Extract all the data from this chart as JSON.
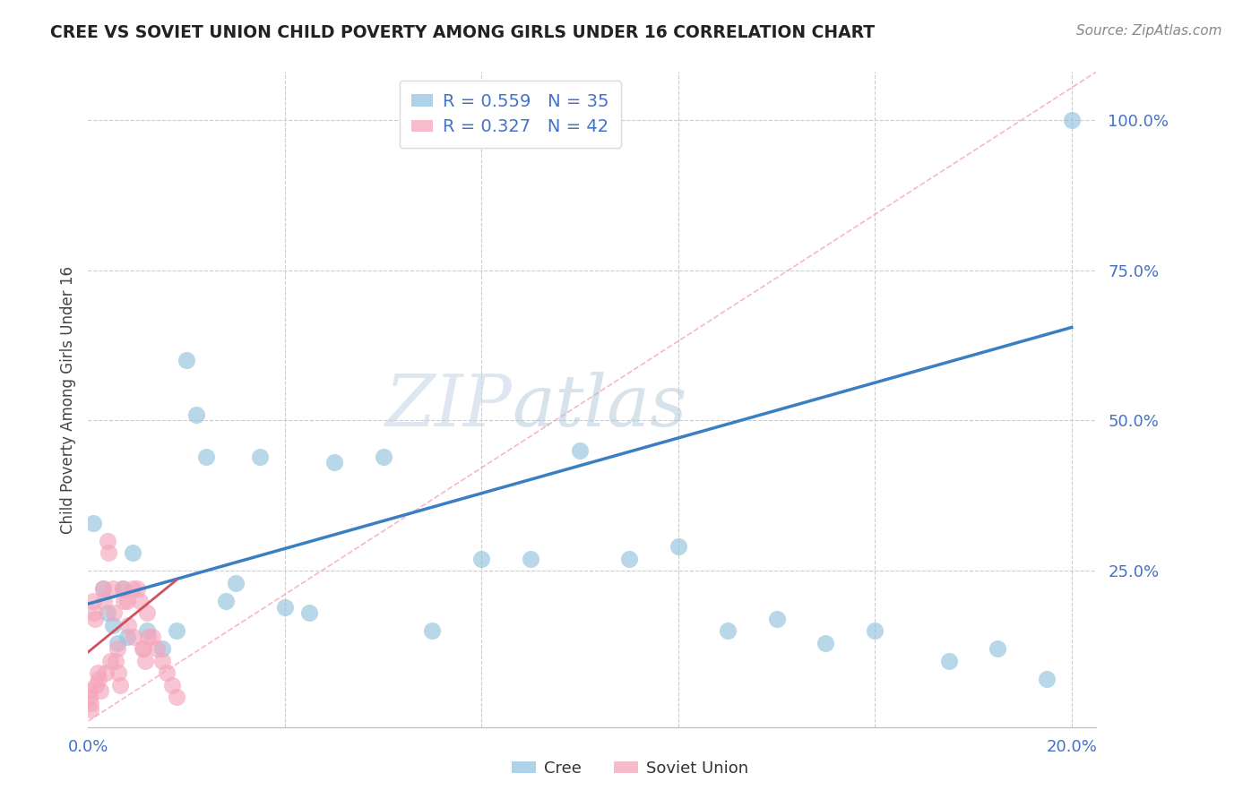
{
  "title": "CREE VS SOVIET UNION CHILD POVERTY AMONG GIRLS UNDER 16 CORRELATION CHART",
  "source": "Source: ZipAtlas.com",
  "ylabel": "Child Poverty Among Girls Under 16",
  "watermark_zip": "ZIP",
  "watermark_atlas": "atlas",
  "cree_color": "#93C4E0",
  "soviet_color": "#F4A6BC",
  "cree_line_color": "#3A7FC1",
  "soviet_line_color": "#D05060",
  "diag_line_color": "#F4A6BC",
  "legend_text_color": "#333333",
  "legend_r_color": "#4472C4",
  "legend_n_color": "#4472C4",
  "axis_label_color": "#4472C4",
  "cree_R": 0.559,
  "cree_N": 35,
  "soviet_R": 0.327,
  "soviet_N": 42,
  "xlim": [
    0.0,
    0.205
  ],
  "ylim": [
    -0.01,
    1.08
  ],
  "cree_x": [
    0.001,
    0.003,
    0.004,
    0.005,
    0.006,
    0.007,
    0.008,
    0.009,
    0.012,
    0.015,
    0.018,
    0.02,
    0.022,
    0.024,
    0.028,
    0.03,
    0.035,
    0.04,
    0.045,
    0.05,
    0.06,
    0.07,
    0.08,
    0.09,
    0.1,
    0.11,
    0.12,
    0.13,
    0.14,
    0.15,
    0.16,
    0.175,
    0.185,
    0.195,
    0.2
  ],
  "cree_y": [
    0.33,
    0.22,
    0.18,
    0.16,
    0.13,
    0.22,
    0.14,
    0.28,
    0.15,
    0.12,
    0.15,
    0.6,
    0.51,
    0.44,
    0.2,
    0.23,
    0.44,
    0.19,
    0.18,
    0.43,
    0.44,
    0.15,
    0.27,
    0.27,
    0.45,
    0.27,
    0.29,
    0.15,
    0.17,
    0.13,
    0.15,
    0.1,
    0.12,
    0.07,
    1.0
  ],
  "soviet_x": [
    0.0002,
    0.0003,
    0.0004,
    0.0005,
    0.001,
    0.0012,
    0.0014,
    0.0015,
    0.002,
    0.0022,
    0.0025,
    0.003,
    0.0032,
    0.0035,
    0.004,
    0.0042,
    0.0045,
    0.005,
    0.0052,
    0.0055,
    0.006,
    0.0062,
    0.0065,
    0.007,
    0.0072,
    0.008,
    0.0082,
    0.009,
    0.0092,
    0.01,
    0.0105,
    0.011,
    0.0112,
    0.0115,
    0.012,
    0.0122,
    0.013,
    0.014,
    0.015,
    0.016,
    0.017,
    0.018
  ],
  "soviet_y": [
    0.05,
    0.04,
    0.03,
    0.02,
    0.2,
    0.18,
    0.17,
    0.06,
    0.08,
    0.07,
    0.05,
    0.22,
    0.2,
    0.08,
    0.3,
    0.28,
    0.1,
    0.22,
    0.18,
    0.1,
    0.12,
    0.08,
    0.06,
    0.22,
    0.2,
    0.2,
    0.16,
    0.22,
    0.14,
    0.22,
    0.2,
    0.12,
    0.12,
    0.1,
    0.18,
    0.14,
    0.14,
    0.12,
    0.1,
    0.08,
    0.06,
    0.04
  ],
  "cree_line_x0": 0.0,
  "cree_line_y0": 0.195,
  "cree_line_x1": 0.2,
  "cree_line_y1": 0.655,
  "soviet_line_x0": 0.0,
  "soviet_line_y0": 0.115,
  "soviet_line_x1": 0.018,
  "soviet_line_y1": 0.235
}
